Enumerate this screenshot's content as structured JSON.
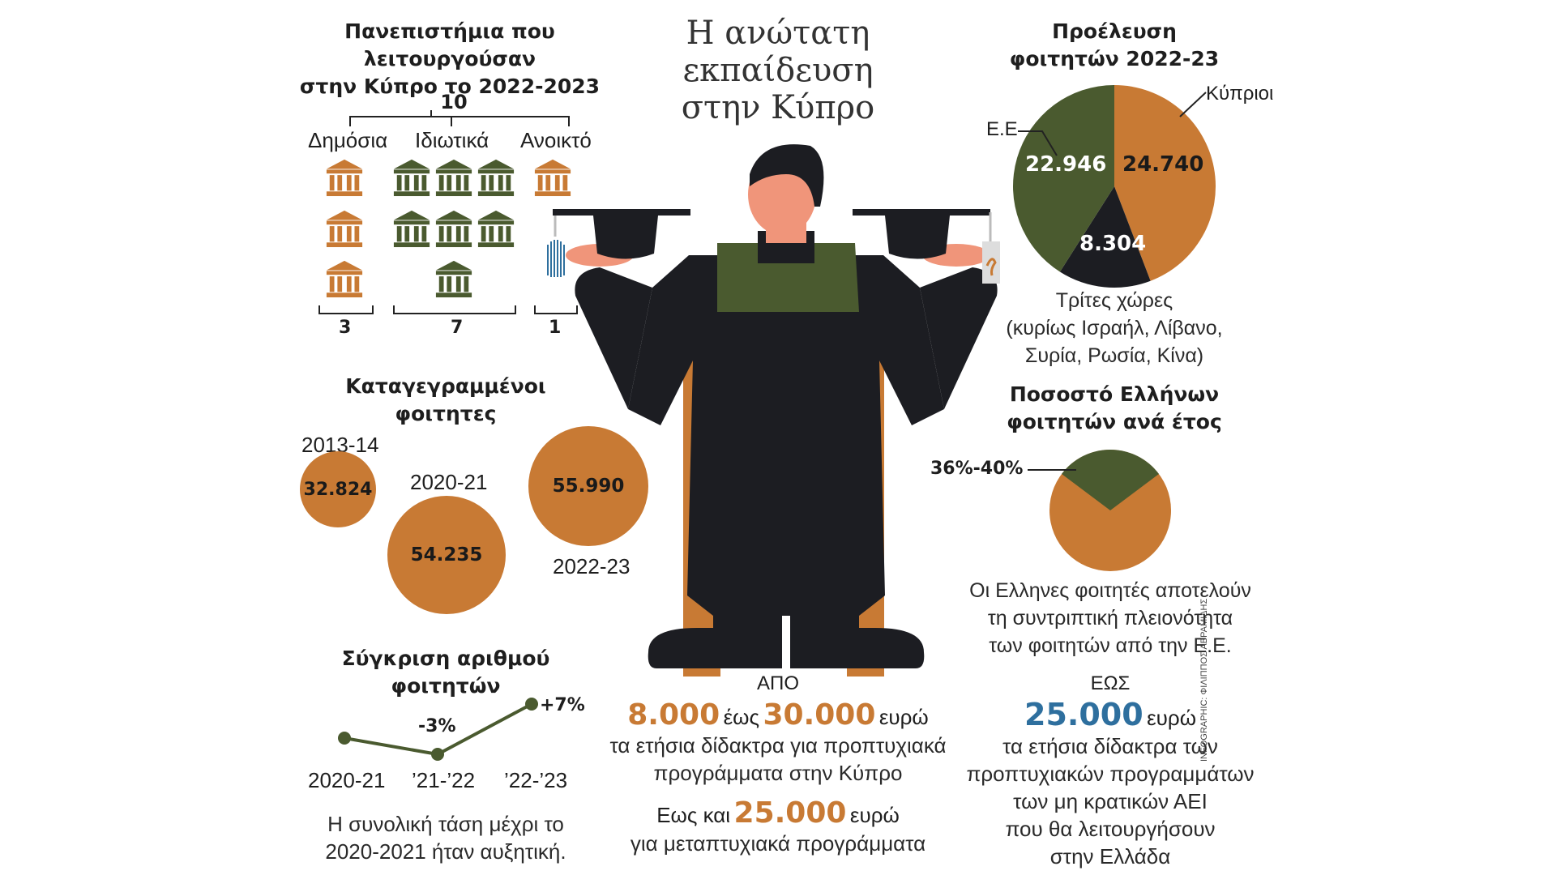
{
  "main_title": {
    "line1": "Η ανώτατη",
    "line2": "εκπαίδευση",
    "line3": "στην Κύπρο"
  },
  "universities": {
    "title_line1": "Πανεπιστήμια που λειτουργούσαν",
    "title_line2": "στην Κύπρο το 2022-2023",
    "total": "10",
    "public_label": "Δημόσια",
    "private_label": "Ιδιωτικά",
    "open_label": "Ανοικτό",
    "public_count": "3",
    "private_count": "7",
    "open_count": "1"
  },
  "registered": {
    "title_line1": "Καταγεγραμμένοι",
    "title_line2": "φοιτητες",
    "items": [
      {
        "year": "2013-14",
        "value": "32.824"
      },
      {
        "year": "2020-21",
        "value": "54.235"
      },
      {
        "year": "2022-23",
        "value": "55.990"
      }
    ]
  },
  "comparison": {
    "title_line1": "Σύγκριση αριθμού",
    "title_line2": "φοιτητών",
    "change1": "-3%",
    "change2": "+7%",
    "x_labels": [
      "2020-21",
      "’21-’22",
      "’22-’23"
    ],
    "note_line1": "Η συνολική τάση μέχρι το",
    "note_line2": "2020-2021 ήταν αυξητική."
  },
  "origin": {
    "title_line1": "Προέλευση",
    "title_line2": "φοιτητών 2022-23",
    "cypriots_label": "Κύπριοι",
    "eu_label": "Ε.Ε",
    "cypriots_value": "24.740",
    "eu_value": "22.946",
    "third_value": "8.304",
    "third_line1": "Τρίτες χώρες",
    "third_line2": "(κυρίως Ισραήλ, Λίβανο,",
    "third_line3": "Συρία, Ρωσία, Κίνα)"
  },
  "greek_share": {
    "title_line1": "Ποσοστό  Ελλήνων",
    "title_line2": "φοιτητών ανά έτος",
    "range_label": "36%-40%",
    "note_line1": "Οι Ελληνες φοιτητές αποτελούν",
    "note_line2": "τη συντριπτική πλειονότητα",
    "note_line3": "των φοιτητών από την Ε.Ε."
  },
  "fees_cyprus": {
    "from_label": "ΑΠΟ",
    "min": "8.000",
    "between": "έως",
    "max": "30.000",
    "currency": "ευρώ",
    "line2": "τα ετήσια δίδακτρα για προπτυχιακά",
    "line3": "προγράμματα στην Κύπρο",
    "post_prefix": "Εως και",
    "post_value": "25.000",
    "post_currency": "ευρώ",
    "post_line2": "για μεταπτυχιακά προγράμματα"
  },
  "fees_greece": {
    "up_to_label": "ΕΩΣ",
    "value": "25.000",
    "currency": "ευρώ",
    "line2": "τα ετήσια δίδακτρα των",
    "line3": "προπτυχιακών προγραμμάτων",
    "line4": "των μη κρατικών ΑΕΙ",
    "line5": "που θα λειτουργήσουν",
    "line6": "στην Ελλάδα"
  },
  "credit": "INFOGRAPHIC: ΦΙΛΙΠΠΟΣ ΑΒΡΑΜΙΔΗΣ",
  "colors": {
    "orange": "#c87a34",
    "green": "#4a5a2f",
    "dark": "#1c1d22",
    "blue": "#2e6f9e",
    "skin": "#f0957a"
  }
}
